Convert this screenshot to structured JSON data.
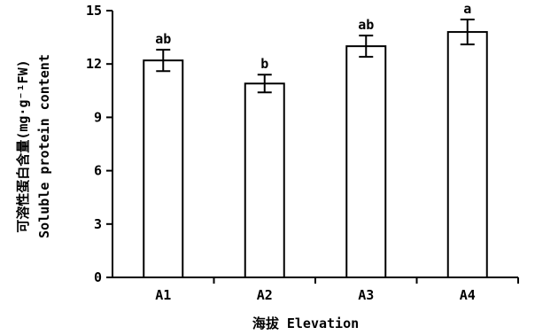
{
  "chart_data": {
    "type": "bar",
    "categories": [
      "A1",
      "A2",
      "A3",
      "A4"
    ],
    "values": [
      12.2,
      10.9,
      13.0,
      13.8
    ],
    "errors": [
      0.6,
      0.5,
      0.6,
      0.7
    ],
    "significance": [
      "ab",
      "b",
      "ab",
      "a"
    ],
    "xlabel": "海拔 Elevation",
    "ylabel_cn": "可溶性蛋白含量(mg·g⁻¹FW)",
    "ylabel_en": "Soluble protein content",
    "ylim": [
      0,
      15
    ],
    "yticks": [
      "0",
      "3",
      "6",
      "9",
      "12",
      "15"
    ],
    "grid": false,
    "legend": "none"
  }
}
